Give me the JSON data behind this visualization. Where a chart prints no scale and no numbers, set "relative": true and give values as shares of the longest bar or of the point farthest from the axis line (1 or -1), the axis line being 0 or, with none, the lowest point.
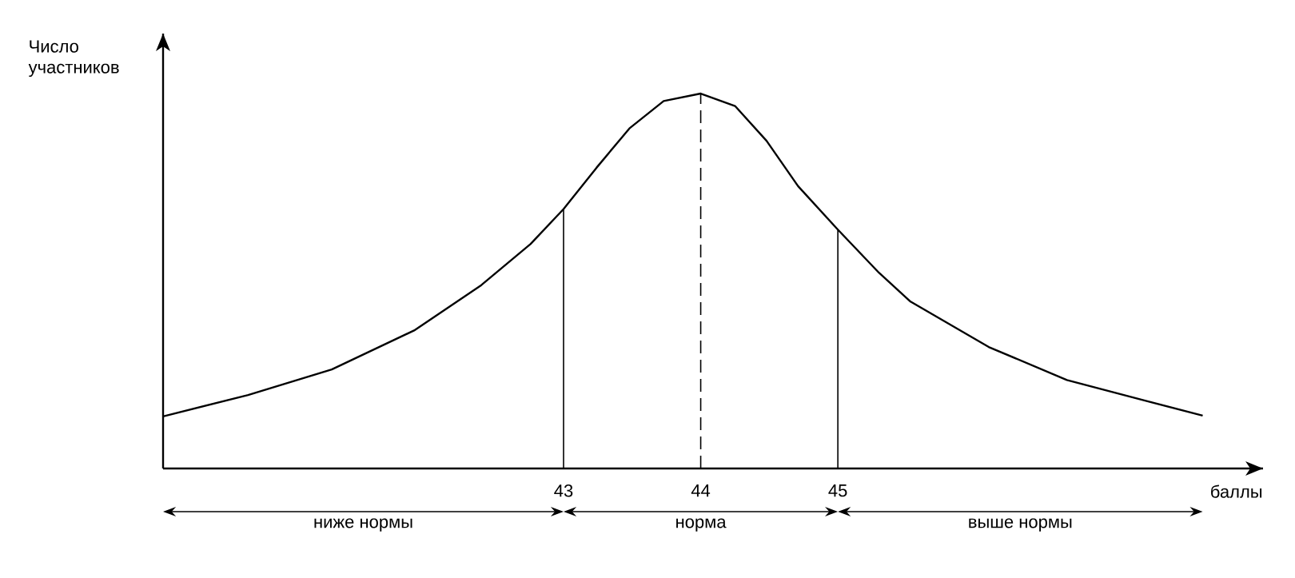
{
  "chart_data": {
    "type": "line",
    "relative": true,
    "xlabel": "баллы",
    "ylabel": "Число участников",
    "x": [
      40.08,
      40.7,
      41.31,
      41.91,
      42.4,
      42.76,
      43.0,
      43.24,
      43.48,
      43.73,
      44.0,
      44.25,
      44.48,
      44.71,
      45.0,
      45.3,
      45.53,
      46.1,
      46.67,
      47.24,
      47.66
    ],
    "series": [
      {
        "color": "#000000",
        "values": [
          0.139,
          0.196,
          0.264,
          0.368,
          0.489,
          0.599,
          0.692,
          0.802,
          0.907,
          0.98,
          1.0,
          0.967,
          0.874,
          0.753,
          0.637,
          0.522,
          0.445,
          0.324,
          0.236,
          0.181,
          0.141
        ]
      }
    ],
    "xlim": [
      40.08,
      48.1
    ],
    "xticks": [
      43,
      44,
      45
    ],
    "grid": false,
    "marker": "none",
    "line_style": "solid",
    "tick_labels": "x",
    "ref_lines": [
      {
        "axis": "x",
        "value": 43,
        "line_style": "solid"
      },
      {
        "axis": "x",
        "value": 44,
        "line_style": "dashed"
      },
      {
        "axis": "x",
        "value": 45,
        "line_style": "solid"
      }
    ],
    "annotations": [
      "ниже нормы",
      "норма",
      "выше нормы"
    ]
  }
}
